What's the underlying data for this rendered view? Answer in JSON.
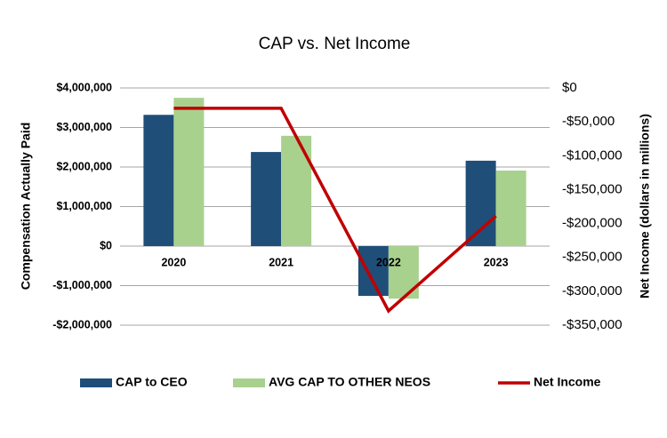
{
  "chart_data": {
    "type": "bar",
    "title": "CAP vs. Net Income",
    "y_label": "Compensation Actually Paid",
    "y2_label": "Net Income (dollars in millions)",
    "categories": [
      "2020",
      "2021",
      "2022",
      "2023"
    ],
    "series": [
      {
        "name": "CAP to CEO",
        "color": "#1f4e79",
        "values": [
          3320000,
          2380000,
          -1260000,
          2160000
        ]
      },
      {
        "name": "AVG CAP TO OTHER NEOS",
        "color": "#a9d18e",
        "values": [
          3750000,
          2790000,
          -1330000,
          1910000
        ]
      },
      {
        "name": "Net Income",
        "color": "#c00000",
        "type": "line",
        "axis": "y2",
        "values": [
          -30000,
          -30000,
          -329000,
          -189000
        ]
      }
    ],
    "ylim": [
      -2000000,
      4000000
    ],
    "yticks": [
      {
        "value": -2000000,
        "label": "-$2,000,000"
      },
      {
        "value": -1000000,
        "label": "-$1,000,000"
      },
      {
        "value": 0,
        "label": "$0"
      },
      {
        "value": 1000000,
        "label": "$1,000,000"
      },
      {
        "value": 2000000,
        "label": "$2,000,000"
      },
      {
        "value": 3000000,
        "label": "$3,000,000"
      },
      {
        "value": 4000000,
        "label": "$4,000,000"
      }
    ],
    "y2lim": [
      -350000,
      0
    ],
    "y2ticks": [
      {
        "value": -350000,
        "label": "-$350,000"
      },
      {
        "value": -300000,
        "label": "-$300,000"
      },
      {
        "value": -250000,
        "label": "-$250,000"
      },
      {
        "value": -200000,
        "label": "-$200,000"
      },
      {
        "value": -150000,
        "label": "-$150,000"
      },
      {
        "value": -100000,
        "label": "-$100,000"
      },
      {
        "value": -50000,
        "label": "-$50,000"
      },
      {
        "value": 0,
        "label": "$0"
      }
    ],
    "grid": true,
    "legend": "bottom"
  }
}
